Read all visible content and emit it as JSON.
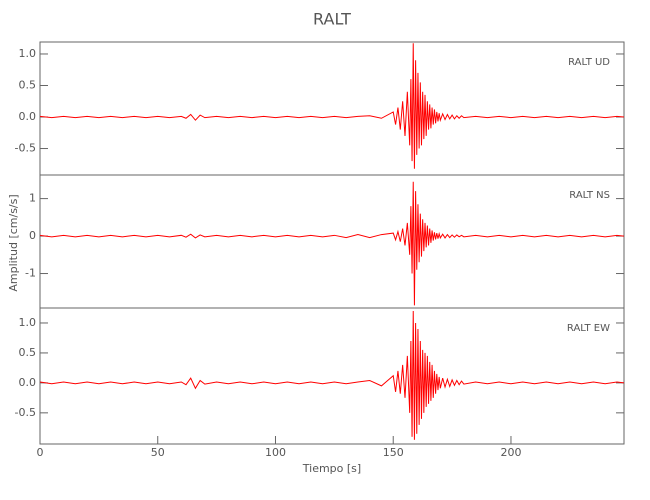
{
  "chart_data": [
    {
      "type": "line",
      "title": "RALT",
      "label": "RALT  UD",
      "color": "#ff0000",
      "xlim": [
        0,
        248
      ],
      "ylim": [
        -0.92,
        1.19
      ],
      "yticks": [
        -0.5,
        {
          "value": 0,
          "label": "0.0"
        },
        0.5,
        {
          "value": 1,
          "label": "1.0"
        }
      ],
      "x": [
        0,
        5,
        10,
        15,
        20,
        25,
        30,
        35,
        40,
        45,
        50,
        55,
        60,
        62,
        64,
        66,
        68,
        70,
        75,
        80,
        85,
        90,
        95,
        100,
        105,
        110,
        115,
        120,
        125,
        130,
        135,
        140,
        145,
        150,
        151,
        152,
        153,
        154,
        155,
        156,
        157,
        157.5,
        158,
        158.5,
        159,
        159.5,
        160,
        160.5,
        161,
        161.5,
        162,
        162.5,
        163,
        163.5,
        164,
        164.5,
        165,
        165.5,
        166,
        166.5,
        167,
        167.5,
        168,
        168.5,
        169,
        169.5,
        170,
        171,
        172,
        173,
        174,
        175,
        176,
        177,
        178,
        179,
        180,
        185,
        190,
        195,
        200,
        205,
        210,
        215,
        220,
        225,
        230,
        235,
        240,
        245,
        248
      ],
      "values": [
        0.01,
        -0.01,
        0.01,
        -0.01,
        0.01,
        -0.01,
        0.01,
        -0.01,
        0.01,
        -0.01,
        0.01,
        -0.01,
        0.01,
        -0.02,
        0.04,
        -0.05,
        0.03,
        -0.01,
        0.01,
        -0.01,
        0.01,
        -0.01,
        0.01,
        -0.01,
        0.01,
        -0.01,
        0.01,
        -0.01,
        0.01,
        -0.01,
        0.01,
        0.02,
        -0.02,
        0.08,
        -0.12,
        0.15,
        -0.2,
        0.25,
        -0.3,
        0.4,
        -0.45,
        0.6,
        -0.7,
        1.17,
        -0.82,
        0.9,
        -0.6,
        0.7,
        -0.5,
        0.55,
        -0.45,
        0.4,
        -0.35,
        0.35,
        -0.3,
        0.25,
        -0.2,
        0.2,
        -0.18,
        0.15,
        -0.12,
        0.12,
        -0.1,
        0.08,
        -0.07,
        0.06,
        -0.05,
        0.05,
        -0.04,
        0.04,
        -0.03,
        0.03,
        -0.03,
        0.02,
        -0.02,
        0.02,
        -0.01,
        0.01,
        -0.01,
        0.01,
        -0.01,
        0.01,
        -0.01,
        0.01,
        -0.01,
        0.01,
        -0.01,
        0.01,
        -0.01,
        0.01,
        0
      ]
    },
    {
      "type": "line",
      "ylabel": "Amplitud [cm/s/s]",
      "label": "RALT  NS",
      "color": "#ff0000",
      "xlim": [
        0,
        248
      ],
      "ylim": [
        -1.92,
        1.63
      ],
      "yticks": [
        -1,
        0,
        1
      ],
      "x": [
        0,
        5,
        10,
        15,
        20,
        25,
        30,
        35,
        40,
        45,
        50,
        55,
        60,
        62,
        64,
        66,
        68,
        70,
        75,
        80,
        85,
        90,
        95,
        100,
        105,
        110,
        115,
        120,
        125,
        130,
        135,
        140,
        145,
        150,
        151,
        152,
        153,
        154,
        155,
        156,
        157,
        157.5,
        158,
        158.5,
        159,
        159.5,
        160,
        160.5,
        161,
        161.5,
        162,
        162.5,
        163,
        163.5,
        164,
        164.5,
        165,
        165.5,
        166,
        166.5,
        167,
        167.5,
        168,
        168.5,
        169,
        169.5,
        170,
        171,
        172,
        173,
        174,
        175,
        176,
        177,
        178,
        179,
        180,
        185,
        190,
        195,
        200,
        205,
        210,
        215,
        220,
        225,
        230,
        235,
        240,
        245,
        248
      ],
      "values": [
        0.02,
        -0.02,
        0.02,
        -0.02,
        0.02,
        -0.02,
        0.02,
        -0.02,
        0.02,
        -0.02,
        0.02,
        -0.02,
        0.02,
        -0.03,
        0.05,
        -0.05,
        0.03,
        -0.02,
        0.02,
        -0.02,
        0.02,
        -0.02,
        0.02,
        -0.02,
        0.02,
        -0.02,
        0.02,
        -0.02,
        0.02,
        -0.04,
        0.04,
        -0.04,
        0.04,
        0.08,
        -0.1,
        0.12,
        -0.15,
        0.2,
        -0.25,
        0.35,
        -0.5,
        0.8,
        -1.0,
        1.45,
        -1.85,
        1.2,
        -0.9,
        0.85,
        -0.7,
        0.6,
        -0.55,
        0.45,
        -0.4,
        0.35,
        -0.3,
        0.28,
        -0.25,
        0.2,
        -0.18,
        0.15,
        -0.12,
        0.1,
        -0.09,
        0.08,
        -0.07,
        0.06,
        -0.05,
        0.05,
        -0.05,
        0.04,
        -0.04,
        0.03,
        -0.03,
        0.03,
        -0.02,
        0.02,
        -0.02,
        0.02,
        -0.02,
        0.02,
        -0.02,
        0.02,
        -0.02,
        0.02,
        -0.02,
        0.02,
        -0.02,
        0.02,
        -0.02,
        0.02,
        0
      ]
    },
    {
      "type": "line",
      "xlabel": "Tiempo [s]",
      "label": "RALT  EW",
      "color": "#ff0000",
      "xlim": [
        0,
        248
      ],
      "ylim": [
        -1.02,
        1.25
      ],
      "xticks": [
        0,
        50,
        100,
        150,
        200
      ],
      "yticks": [
        -0.5,
        {
          "value": 0,
          "label": "0.0"
        },
        0.5,
        {
          "value": 1,
          "label": "1.0"
        }
      ],
      "x": [
        0,
        5,
        10,
        15,
        20,
        25,
        30,
        35,
        40,
        45,
        50,
        55,
        60,
        62,
        64,
        66,
        68,
        70,
        75,
        80,
        85,
        90,
        95,
        100,
        105,
        110,
        115,
        120,
        125,
        130,
        135,
        140,
        145,
        150,
        151,
        152,
        153,
        154,
        155,
        156,
        157,
        157.5,
        158,
        158.5,
        159,
        159.5,
        160,
        160.5,
        161,
        161.5,
        162,
        162.5,
        163,
        163.5,
        164,
        164.5,
        165,
        165.5,
        166,
        166.5,
        167,
        167.5,
        168,
        168.5,
        169,
        169.5,
        170,
        171,
        172,
        173,
        174,
        175,
        176,
        177,
        178,
        179,
        180,
        185,
        190,
        195,
        200,
        205,
        210,
        215,
        220,
        225,
        230,
        235,
        240,
        245,
        248
      ],
      "values": [
        0.015,
        -0.015,
        0.015,
        -0.015,
        0.015,
        -0.015,
        0.015,
        -0.015,
        0.015,
        -0.015,
        0.015,
        -0.015,
        0.015,
        -0.03,
        0.08,
        -0.09,
        0.04,
        -0.02,
        0.015,
        -0.015,
        0.015,
        -0.015,
        0.015,
        -0.015,
        0.015,
        -0.015,
        0.015,
        -0.015,
        0.015,
        -0.015,
        0.015,
        0.04,
        -0.05,
        0.12,
        -0.15,
        0.2,
        -0.18,
        0.3,
        -0.25,
        0.45,
        -0.5,
        0.7,
        -0.9,
        1.2,
        -0.95,
        1.0,
        -0.85,
        0.9,
        -0.7,
        0.7,
        -0.6,
        0.55,
        -0.5,
        0.5,
        -0.4,
        0.45,
        -0.35,
        0.35,
        -0.3,
        0.3,
        -0.25,
        0.2,
        -0.18,
        0.15,
        -0.12,
        0.1,
        -0.09,
        0.08,
        -0.07,
        0.06,
        -0.06,
        0.05,
        -0.04,
        0.04,
        -0.03,
        0.03,
        -0.02,
        0.015,
        -0.015,
        0.015,
        -0.015,
        0.015,
        -0.015,
        0.015,
        -0.015,
        0.015,
        -0.015,
        0.015,
        -0.015,
        0.015,
        0
      ]
    }
  ]
}
